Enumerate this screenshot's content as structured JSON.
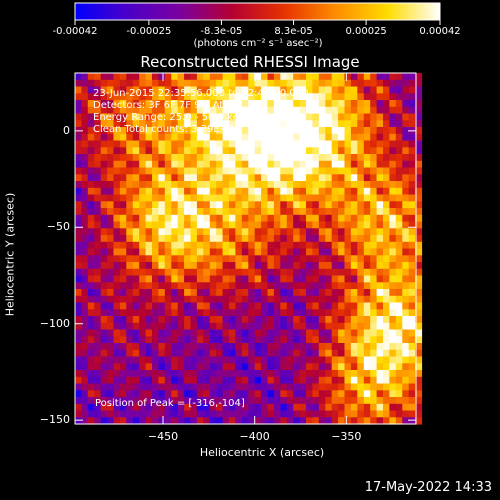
{
  "colorbar": {
    "tick_labels": [
      "-0.00042",
      "-0.00025",
      "-8.3e-05",
      "8.3e-05",
      "0.00025",
      "0.00042"
    ],
    "tick_values": [
      -0.00042,
      -0.00025,
      -8.3e-05,
      8.3e-05,
      0.00025,
      0.00042
    ],
    "range": [
      -0.00042,
      0.00042
    ],
    "units_label": "(photons cm⁻² s⁻¹ asec⁻²)",
    "colors": [
      "#0000ff",
      "#4b00c8",
      "#7a00a0",
      "#b40032",
      "#e63200",
      "#ff8c00",
      "#ffdc00",
      "#ffffff"
    ]
  },
  "chart_data": {
    "type": "heatmap",
    "title": "Reconstructed RHESSI Image",
    "xlabel": "Heliocentric X (arcsec)",
    "ylabel": "Heliocentric Y (arcsec)",
    "xlim": [
      -498,
      -312
    ],
    "ylim": [
      -152,
      30
    ],
    "x_ticks": [
      -450,
      -400,
      -350
    ],
    "y_ticks": [
      0,
      -50,
      -100,
      -150
    ],
    "x_tick_labels": [
      "−450",
      "−400",
      "−350"
    ],
    "y_tick_labels": [
      "0",
      "−50",
      "−100",
      "−150"
    ],
    "peak": {
      "x": -316,
      "y": -104
    },
    "annotations": [
      "23-Jun-2015 22:35:56.000 to 22:40:00.000",
      "Detectors: 3F 6F 7F 9F, Att 0",
      "Energy Range: 25.0 - 50.0 keV",
      "Clean     Total counts: 3.39E+03"
    ],
    "peak_label": "Position of Peak = [-316,-104]",
    "grid": false
  },
  "footer": {
    "date": "17-May-2022 14:33"
  }
}
